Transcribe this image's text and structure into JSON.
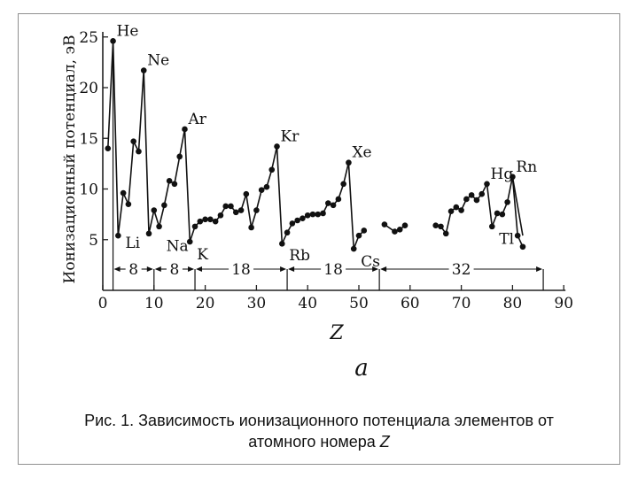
{
  "chart_data": {
    "type": "line",
    "ylabel": "Ионизационный потенциал, эВ",
    "xlabel": "Z",
    "sublabel": "a",
    "xlim": [
      0,
      90
    ],
    "ylim": [
      0,
      26
    ],
    "x_ticks": [
      0,
      10,
      20,
      30,
      40,
      50,
      60,
      70,
      80,
      90
    ],
    "y_ticks": [
      5,
      10,
      15,
      20,
      25
    ],
    "series": [
      {
        "points": [
          [
            1,
            14.0
          ],
          [
            2,
            24.6
          ],
          [
            3,
            5.4
          ],
          [
            4,
            9.6
          ],
          [
            5,
            8.5
          ],
          [
            6,
            14.7
          ],
          [
            7,
            13.7
          ],
          [
            8,
            21.7
          ],
          [
            9,
            5.6
          ],
          [
            10,
            7.9
          ],
          [
            11,
            6.3
          ],
          [
            12,
            8.4
          ],
          [
            13,
            10.8
          ],
          [
            14,
            10.5
          ],
          [
            15,
            13.2
          ],
          [
            16,
            15.9
          ],
          [
            17,
            4.8
          ],
          [
            18,
            6.3
          ],
          [
            19,
            6.8
          ],
          [
            20,
            7.0
          ],
          [
            21,
            7.0
          ],
          [
            22,
            6.8
          ],
          [
            23,
            7.4
          ],
          [
            24,
            8.3
          ],
          [
            25,
            8.3
          ],
          [
            26,
            7.7
          ],
          [
            27,
            7.9
          ],
          [
            28,
            9.5
          ],
          [
            29,
            6.2
          ],
          [
            30,
            7.9
          ],
          [
            31,
            9.9
          ],
          [
            32,
            10.2
          ],
          [
            33,
            11.9
          ],
          [
            34,
            14.2
          ],
          [
            35,
            4.6
          ],
          [
            36,
            5.7
          ],
          [
            37,
            6.6
          ],
          [
            38,
            6.9
          ],
          [
            39,
            7.1
          ],
          [
            40,
            7.4
          ],
          [
            41,
            7.5
          ],
          [
            42,
            7.5
          ],
          [
            43,
            7.6
          ],
          [
            44,
            8.6
          ],
          [
            45,
            8.4
          ],
          [
            46,
            9.0
          ],
          [
            47,
            10.5
          ],
          [
            48,
            12.6
          ],
          [
            49,
            4.1
          ],
          [
            50,
            5.4
          ],
          [
            51,
            5.9
          ]
        ]
      },
      {
        "points": [
          [
            55,
            6.5
          ],
          [
            57,
            5.8
          ],
          [
            58,
            6.0
          ],
          [
            59,
            6.4
          ]
        ]
      },
      {
        "points": [
          [
            65,
            6.4
          ],
          [
            66,
            6.3
          ],
          [
            67,
            5.6
          ],
          [
            68,
            7.8
          ],
          [
            69,
            8.2
          ],
          [
            70,
            7.9
          ],
          [
            71,
            9.0
          ],
          [
            72,
            9.4
          ],
          [
            73,
            8.9
          ],
          [
            74,
            9.5
          ],
          [
            75,
            10.5
          ],
          [
            76,
            6.3
          ],
          [
            77,
            7.6
          ],
          [
            78,
            7.5
          ],
          [
            79,
            8.7
          ],
          [
            80,
            11.2
          ],
          [
            81,
            5.4
          ],
          [
            82,
            4.3
          ]
        ]
      }
    ],
    "element_labels": [
      {
        "text": "He",
        "z": 2,
        "ev": 24.6
      },
      {
        "text": "Ne",
        "z": 8,
        "ev": 21.7
      },
      {
        "text": "Ar",
        "z": 16,
        "ev": 15.9
      },
      {
        "text": "Kr",
        "z": 34,
        "ev": 14.2
      },
      {
        "text": "Xe",
        "z": 48,
        "ev": 12.6
      },
      {
        "text": "Hg",
        "z": 75,
        "ev": 10.5
      },
      {
        "text": "Rn",
        "z": 80,
        "ev": 11.2
      },
      {
        "text": "Li",
        "z": 3,
        "ev": 5.4
      },
      {
        "text": "Na",
        "z": 11,
        "ev": 5.1
      },
      {
        "text": "K",
        "z": 17,
        "ev": 4.3
      },
      {
        "text": "Rb",
        "z": 35,
        "ev": 4.2
      },
      {
        "text": "Cs",
        "z": 49,
        "ev": 3.6
      },
      {
        "text": "Tl",
        "z": 76,
        "ev": 5.8
      }
    ],
    "periods": [
      {
        "from": 2,
        "to": 10,
        "label": "8"
      },
      {
        "from": 10,
        "to": 18,
        "label": "8"
      },
      {
        "from": 18,
        "to": 36,
        "label": "18"
      },
      {
        "from": 36,
        "to": 54,
        "label": "18"
      },
      {
        "from": 54,
        "to": 86,
        "label": "32"
      }
    ]
  },
  "caption": {
    "line1": "Рис. 1. Зависимость ионизационного потенциала элементов от",
    "line2_prefix": "атомного номера ",
    "line2_var": "Z"
  }
}
